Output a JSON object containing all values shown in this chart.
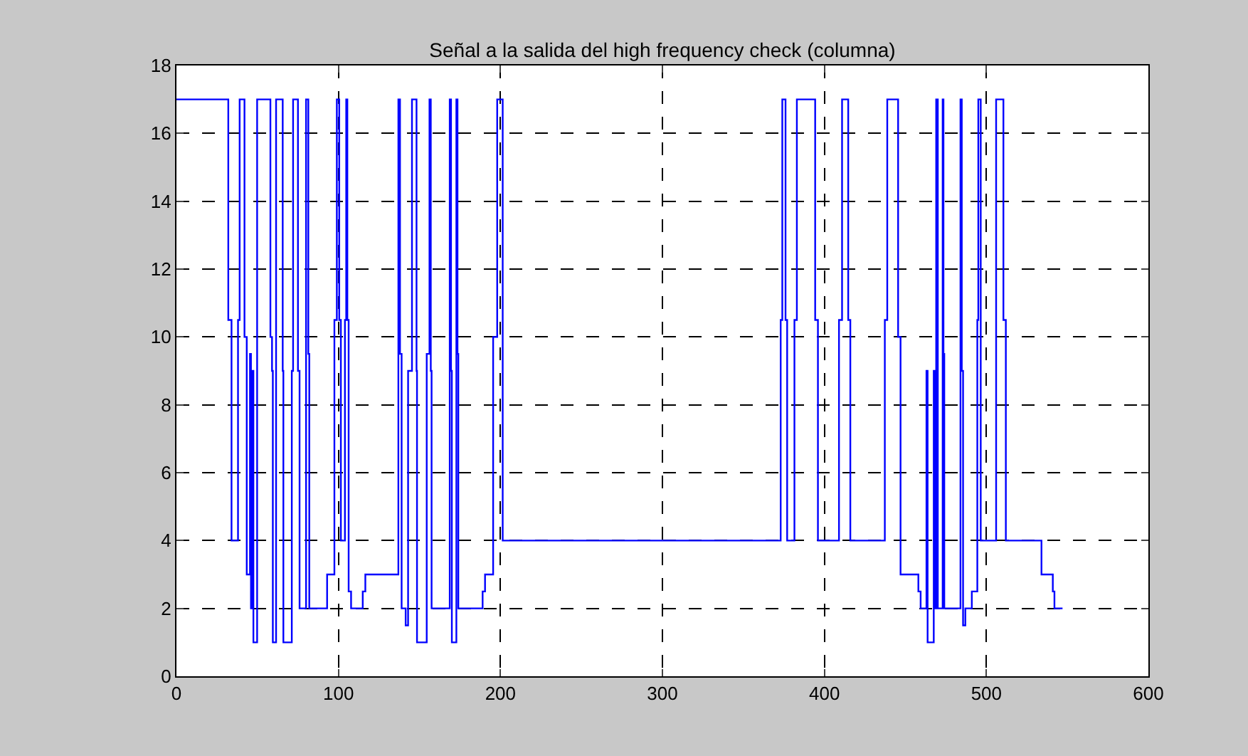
{
  "chart_data": {
    "type": "step",
    "title": "Señal a la salida del high frequency check (columna)",
    "x": [
      0,
      32,
      34,
      38,
      39,
      42,
      43.4,
      45.4,
      46,
      47,
      47.5,
      49.8,
      58,
      59,
      59.5,
      61.5,
      65.6,
      66,
      71.2,
      72,
      75,
      76,
      80,
      81.4,
      82,
      93,
      97.5,
      99,
      100.5,
      101.5,
      104,
      104.8,
      105.5,
      106.3,
      107.8,
      115,
      116.6,
      137,
      138,
      139,
      140,
      141.5,
      143,
      145.4,
      148.2,
      148.5,
      154.5,
      156.2,
      157,
      157.5,
      168.7,
      169.5,
      170,
      172.8,
      173.5,
      174,
      189,
      190.5,
      195.5,
      198,
      201.4,
      373,
      374,
      376,
      377,
      381.5,
      383,
      394.3,
      396,
      409,
      410.9,
      414.7,
      416,
      437.3,
      438.8,
      445.5,
      447,
      458,
      459.4,
      463,
      463.7,
      467.5,
      468,
      469,
      470,
      473,
      473.5,
      474,
      484,
      484.8,
      485.6,
      487,
      491,
      494.4,
      495,
      496.5,
      506,
      510.5,
      512,
      534,
      541,
      542,
      547
    ],
    "values": [
      17,
      10.5,
      4,
      10.5,
      17,
      10,
      3,
      9.5,
      2,
      9,
      1,
      17,
      10,
      9,
      1,
      17,
      9,
      1,
      9,
      17,
      9,
      2,
      17,
      9.5,
      2,
      3,
      10.5,
      17,
      10.5,
      4,
      10.5,
      17,
      10.5,
      2.5,
      2,
      2.5,
      3,
      17,
      9.5,
      2,
      2,
      1.5,
      9,
      17,
      9,
      1,
      9.5,
      17,
      9,
      2,
      17,
      9,
      1,
      17,
      9.5,
      2,
      2.5,
      3,
      10,
      17,
      4,
      10.5,
      17,
      10.5,
      4,
      10.5,
      17,
      10.5,
      4,
      10.5,
      17,
      10.5,
      4,
      10.5,
      17,
      10,
      3,
      2.5,
      2,
      9,
      1,
      9,
      2,
      17,
      2,
      17,
      9.5,
      2,
      17,
      9,
      1.5,
      2,
      2.5,
      10.5,
      17,
      4,
      17,
      10.5,
      4,
      3,
      2.5,
      2,
      2
    ],
    "color": "#0000ff",
    "xlim": [
      0,
      600
    ],
    "xticks": [
      0,
      100,
      200,
      300,
      400,
      500,
      600
    ],
    "ylim": [
      0,
      18
    ],
    "yticks": [
      0,
      2,
      4,
      6,
      8,
      10,
      12,
      14,
      16,
      18
    ],
    "grid": true,
    "line_style": "solid",
    "marker": "none"
  }
}
